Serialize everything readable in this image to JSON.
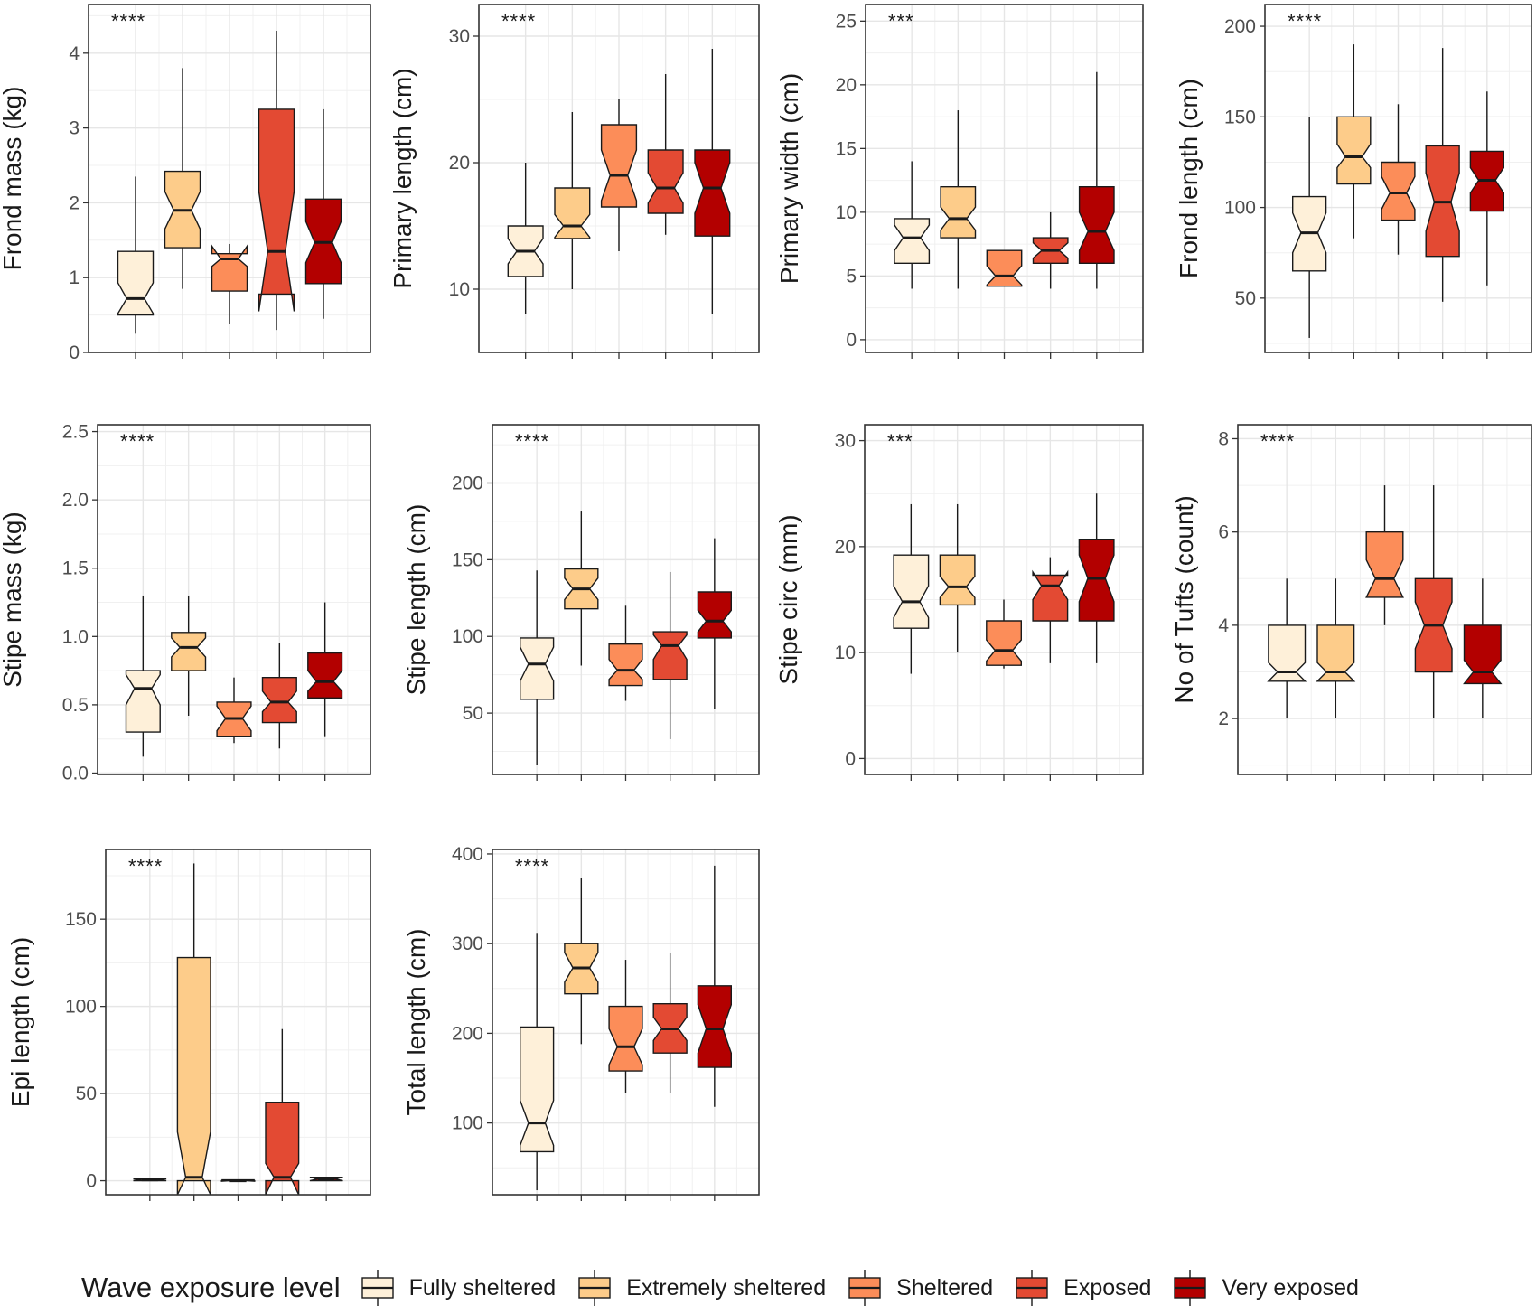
{
  "chart_data": [
    {
      "type": "boxplot",
      "ylabel": "Frond mass (kg)",
      "significance": "****",
      "ylim": [
        0,
        4.65
      ],
      "yticks": [
        0,
        1,
        2,
        3,
        4
      ],
      "boxes": [
        {
          "group": "Fully sheltered",
          "min": 0.25,
          "q1": 0.5,
          "median": 0.72,
          "q3": 1.35,
          "max": 2.35,
          "notch_lo": 0.52,
          "notch_hi": 0.93
        },
        {
          "group": "Extremely sheltered",
          "min": 0.85,
          "q1": 1.4,
          "median": 1.9,
          "q3": 2.42,
          "max": 3.8,
          "notch_lo": 1.65,
          "notch_hi": 2.15
        },
        {
          "group": "Sheltered",
          "min": 0.38,
          "q1": 0.82,
          "median": 1.25,
          "q3": 1.32,
          "max": 1.45,
          "notch_lo": 1.15,
          "notch_hi": 1.42
        },
        {
          "group": "Exposed",
          "min": 0.3,
          "q1": 0.78,
          "median": 1.35,
          "q3": 3.25,
          "max": 4.3,
          "notch_lo": 0.55,
          "notch_hi": 2.15
        },
        {
          "group": "Very exposed",
          "min": 0.45,
          "q1": 0.92,
          "median": 1.47,
          "q3": 2.05,
          "max": 3.25,
          "notch_lo": 1.2,
          "notch_hi": 1.75
        }
      ]
    },
    {
      "type": "boxplot",
      "ylabel": "Primary length (cm)",
      "significance": "****",
      "ylim": [
        5,
        32.5
      ],
      "yticks": [
        10,
        20,
        30
      ],
      "boxes": [
        {
          "group": "Fully sheltered",
          "min": 8,
          "q1": 11,
          "median": 13,
          "q3": 15,
          "max": 20,
          "notch_lo": 12,
          "notch_hi": 14
        },
        {
          "group": "Extremely sheltered",
          "min": 10,
          "q1": 14,
          "median": 15,
          "q3": 18,
          "max": 24,
          "notch_lo": 14.1,
          "notch_hi": 15.9
        },
        {
          "group": "Sheltered",
          "min": 13,
          "q1": 16.5,
          "median": 19,
          "q3": 23,
          "max": 25,
          "notch_lo": 17,
          "notch_hi": 21
        },
        {
          "group": "Exposed",
          "min": 14.3,
          "q1": 16,
          "median": 18,
          "q3": 21,
          "max": 27,
          "notch_lo": 16.8,
          "notch_hi": 19.2
        },
        {
          "group": "Very exposed",
          "min": 8,
          "q1": 14.2,
          "median": 18,
          "q3": 21,
          "max": 29,
          "notch_lo": 16,
          "notch_hi": 20
        }
      ]
    },
    {
      "type": "boxplot",
      "ylabel": "Primary width (cm)",
      "significance": "***",
      "ylim": [
        -1,
        26.3
      ],
      "yticks": [
        0,
        5,
        10,
        15,
        20,
        25
      ],
      "boxes": [
        {
          "group": "Fully sheltered",
          "min": 4,
          "q1": 6,
          "median": 8,
          "q3": 9.5,
          "max": 14,
          "notch_lo": 7,
          "notch_hi": 9
        },
        {
          "group": "Extremely sheltered",
          "min": 4,
          "q1": 8,
          "median": 9.5,
          "q3": 12,
          "max": 18,
          "notch_lo": 8.6,
          "notch_hi": 10.4
        },
        {
          "group": "Sheltered",
          "min": 4.2,
          "q1": 4.2,
          "median": 5,
          "q3": 7,
          "max": 7,
          "notch_lo": 4.3,
          "notch_hi": 5.8
        },
        {
          "group": "Exposed",
          "min": 4,
          "q1": 6,
          "median": 7,
          "q3": 8,
          "max": 10,
          "notch_lo": 6.4,
          "notch_hi": 7.6
        },
        {
          "group": "Very exposed",
          "min": 4,
          "q1": 6,
          "median": 8.5,
          "q3": 12,
          "max": 21,
          "notch_lo": 7,
          "notch_hi": 10
        }
      ]
    },
    {
      "type": "boxplot",
      "ylabel": "Frond length (cm)",
      "significance": "****",
      "ylim": [
        20,
        212
      ],
      "yticks": [
        50,
        100,
        150,
        200
      ],
      "boxes": [
        {
          "group": "Fully sheltered",
          "min": 28,
          "q1": 65,
          "median": 86,
          "q3": 106,
          "max": 150,
          "notch_lo": 75,
          "notch_hi": 97
        },
        {
          "group": "Extremely sheltered",
          "min": 83,
          "q1": 113,
          "median": 128,
          "q3": 150,
          "max": 190,
          "notch_lo": 122,
          "notch_hi": 135
        },
        {
          "group": "Sheltered",
          "min": 74,
          "q1": 93,
          "median": 108,
          "q3": 125,
          "max": 157,
          "notch_lo": 99,
          "notch_hi": 117
        },
        {
          "group": "Exposed",
          "min": 48,
          "q1": 73,
          "median": 103,
          "q3": 134,
          "max": 188,
          "notch_lo": 87,
          "notch_hi": 119
        },
        {
          "group": "Very exposed",
          "min": 57,
          "q1": 98,
          "median": 115,
          "q3": 131,
          "max": 164,
          "notch_lo": 108,
          "notch_hi": 122
        }
      ]
    },
    {
      "type": "boxplot",
      "ylabel": "Stipe mass (kg)",
      "significance": "****",
      "ylim": [
        -0.01,
        2.55
      ],
      "yticks": [
        0.0,
        0.5,
        1.0,
        1.5,
        2.0,
        2.5
      ],
      "boxes": [
        {
          "group": "Fully sheltered",
          "min": 0.12,
          "q1": 0.3,
          "median": 0.62,
          "q3": 0.75,
          "max": 1.3,
          "notch_lo": 0.5,
          "notch_hi": 0.72
        },
        {
          "group": "Extremely sheltered",
          "min": 0.42,
          "q1": 0.75,
          "median": 0.92,
          "q3": 1.03,
          "max": 1.3,
          "notch_lo": 0.85,
          "notch_hi": 0.99
        },
        {
          "group": "Sheltered",
          "min": 0.22,
          "q1": 0.27,
          "median": 0.4,
          "q3": 0.52,
          "max": 0.7,
          "notch_lo": 0.31,
          "notch_hi": 0.49
        },
        {
          "group": "Exposed",
          "min": 0.18,
          "q1": 0.37,
          "median": 0.52,
          "q3": 0.7,
          "max": 0.95,
          "notch_lo": 0.45,
          "notch_hi": 0.6
        },
        {
          "group": "Very exposed",
          "min": 0.27,
          "q1": 0.55,
          "median": 0.67,
          "q3": 0.88,
          "max": 1.25,
          "notch_lo": 0.6,
          "notch_hi": 0.75
        }
      ]
    },
    {
      "type": "boxplot",
      "ylabel": "Stipe length (cm)",
      "significance": "****",
      "ylim": [
        10,
        238
      ],
      "yticks": [
        50,
        100,
        150,
        200
      ],
      "boxes": [
        {
          "group": "Fully sheltered",
          "min": 16,
          "q1": 59,
          "median": 82,
          "q3": 99,
          "max": 143,
          "notch_lo": 71,
          "notch_hi": 93
        },
        {
          "group": "Extremely sheltered",
          "min": 81,
          "q1": 118,
          "median": 131,
          "q3": 144,
          "max": 182,
          "notch_lo": 124,
          "notch_hi": 138
        },
        {
          "group": "Sheltered",
          "min": 58,
          "q1": 68,
          "median": 78,
          "q3": 95,
          "max": 120,
          "notch_lo": 72,
          "notch_hi": 85
        },
        {
          "group": "Exposed",
          "min": 33,
          "q1": 72,
          "median": 94,
          "q3": 103,
          "max": 142,
          "notch_lo": 85,
          "notch_hi": 101
        },
        {
          "group": "Very exposed",
          "min": 53,
          "q1": 99,
          "median": 110,
          "q3": 129,
          "max": 164,
          "notch_lo": 103,
          "notch_hi": 117
        }
      ]
    },
    {
      "type": "boxplot",
      "ylabel": "Stipe circ (mm)",
      "significance": "***",
      "ylim": [
        -1.5,
        31.5
      ],
      "yticks": [
        0,
        10,
        20,
        30
      ],
      "boxes": [
        {
          "group": "Fully sheltered",
          "min": 8,
          "q1": 12.3,
          "median": 14.8,
          "q3": 19.2,
          "max": 24,
          "notch_lo": 13.3,
          "notch_hi": 16.3
        },
        {
          "group": "Extremely sheltered",
          "min": 10,
          "q1": 14.5,
          "median": 16.2,
          "q3": 19.2,
          "max": 24,
          "notch_lo": 15.2,
          "notch_hi": 17.2
        },
        {
          "group": "Sheltered",
          "min": 8.5,
          "q1": 8.8,
          "median": 10.2,
          "q3": 13,
          "max": 15,
          "notch_lo": 9.2,
          "notch_hi": 11.2
        },
        {
          "group": "Exposed",
          "min": 9,
          "q1": 13,
          "median": 16.3,
          "q3": 17.3,
          "max": 19,
          "notch_lo": 15,
          "notch_hi": 17.6
        },
        {
          "group": "Very exposed",
          "min": 9,
          "q1": 13,
          "median": 17,
          "q3": 20.7,
          "max": 25,
          "notch_lo": 14.8,
          "notch_hi": 19.2
        }
      ]
    },
    {
      "type": "boxplot",
      "ylabel": "No of Tufts (count)",
      "significance": "****",
      "ylim": [
        0.8,
        8.3
      ],
      "yticks": [
        2,
        4,
        6,
        8
      ],
      "boxes": [
        {
          "group": "Fully sheltered",
          "min": 2,
          "q1": 2.8,
          "median": 3,
          "q3": 4,
          "max": 5,
          "notch_lo": 2.8,
          "notch_hi": 3.2
        },
        {
          "group": "Extremely sheltered",
          "min": 2,
          "q1": 2.8,
          "median": 3,
          "q3": 4,
          "max": 5,
          "notch_lo": 2.8,
          "notch_hi": 3.2
        },
        {
          "group": "Sheltered",
          "min": 4,
          "q1": 4.6,
          "median": 5,
          "q3": 6,
          "max": 7,
          "notch_lo": 4.6,
          "notch_hi": 5.4
        },
        {
          "group": "Exposed",
          "min": 2,
          "q1": 3,
          "median": 4,
          "q3": 5,
          "max": 7,
          "notch_lo": 3.5,
          "notch_hi": 4.5
        },
        {
          "group": "Very exposed",
          "min": 2,
          "q1": 2.75,
          "median": 3,
          "q3": 4,
          "max": 5,
          "notch_lo": 2.75,
          "notch_hi": 3.25
        }
      ]
    },
    {
      "type": "boxplot",
      "ylabel": "Epi length (cm)",
      "significance": "****",
      "ylim": [
        -8,
        190
      ],
      "yticks": [
        0,
        50,
        100,
        150
      ],
      "boxes": [
        {
          "group": "Fully sheltered",
          "min": 0,
          "q1": 0,
          "median": 0.5,
          "q3": 1,
          "max": 1,
          "notch_lo": 0,
          "notch_hi": 1
        },
        {
          "group": "Extremely sheltered",
          "min": 0,
          "q1": 0,
          "median": 2,
          "q3": 128,
          "max": 182,
          "notch_lo": -8,
          "notch_hi": 28
        },
        {
          "group": "Sheltered",
          "min": 0,
          "q1": 0,
          "median": 0,
          "q3": 0.5,
          "max": 0.5,
          "notch_lo": -0.3,
          "notch_hi": 0.5
        },
        {
          "group": "Exposed",
          "min": 0,
          "q1": 0,
          "median": 2,
          "q3": 45,
          "max": 87,
          "notch_lo": -8,
          "notch_hi": 10
        },
        {
          "group": "Very exposed",
          "min": 0,
          "q1": 0,
          "median": 1,
          "q3": 2,
          "max": 2,
          "notch_lo": 0,
          "notch_hi": 2
        }
      ]
    },
    {
      "type": "boxplot",
      "ylabel": "Total length (cm)",
      "significance": "****",
      "ylim": [
        20,
        405
      ],
      "yticks": [
        100,
        200,
        300,
        400
      ],
      "boxes": [
        {
          "group": "Fully sheltered",
          "min": 25,
          "q1": 68,
          "median": 100,
          "q3": 207,
          "max": 312,
          "notch_lo": 75,
          "notch_hi": 125
        },
        {
          "group": "Extremely sheltered",
          "min": 188,
          "q1": 244,
          "median": 273,
          "q3": 300,
          "max": 373,
          "notch_lo": 257,
          "notch_hi": 290
        },
        {
          "group": "Sheltered",
          "min": 133,
          "q1": 158,
          "median": 185,
          "q3": 230,
          "max": 282,
          "notch_lo": 165,
          "notch_hi": 205
        },
        {
          "group": "Exposed",
          "min": 133,
          "q1": 178,
          "median": 205,
          "q3": 233,
          "max": 290,
          "notch_lo": 192,
          "notch_hi": 218
        },
        {
          "group": "Very exposed",
          "min": 118,
          "q1": 162,
          "median": 205,
          "q3": 253,
          "max": 387,
          "notch_lo": 178,
          "notch_hi": 232
        }
      ]
    }
  ],
  "legend": {
    "title": "Wave exposure level",
    "items": [
      {
        "label": "Fully sheltered",
        "color": "#fef0d9"
      },
      {
        "label": "Extremely sheltered",
        "color": "#fdcc8a"
      },
      {
        "label": "Sheltered",
        "color": "#fc8d59"
      },
      {
        "label": "Exposed",
        "color": "#e34a33"
      },
      {
        "label": "Very exposed",
        "color": "#b30000"
      }
    ]
  }
}
